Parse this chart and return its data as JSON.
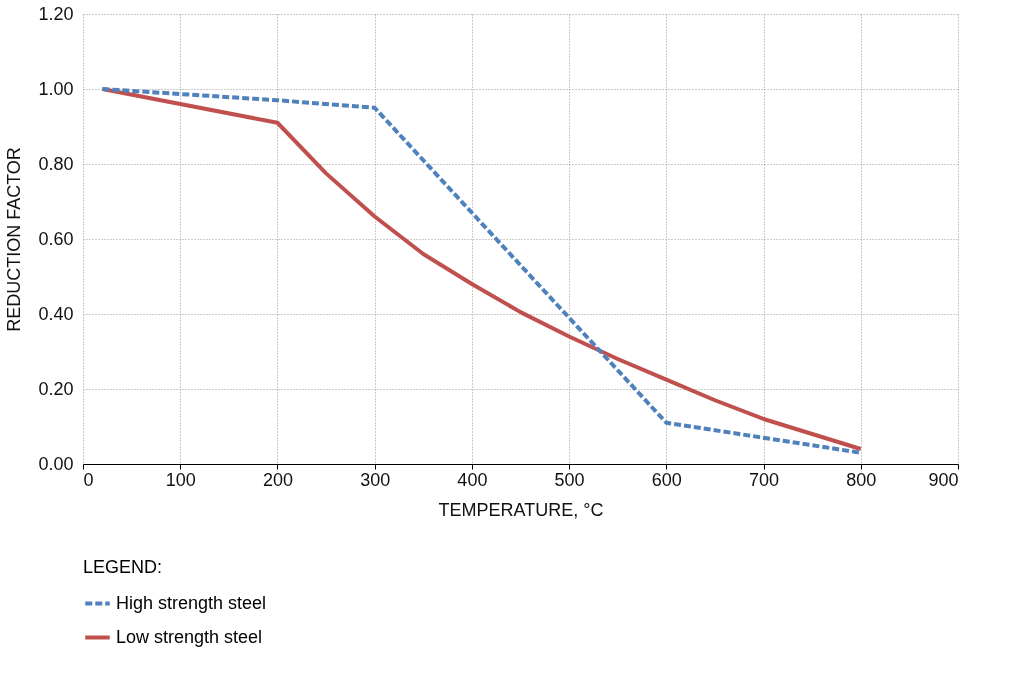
{
  "chart_data": {
    "type": "line",
    "xlabel": "TEMPERATURE, °C",
    "ylabel": "REDUCTION FACTOR",
    "legend_title": "LEGEND:",
    "legend": "bottom",
    "grid": true,
    "marker": "none",
    "xlim": [
      0,
      900
    ],
    "xticks": [
      0,
      100,
      200,
      300,
      400,
      500,
      600,
      700,
      800,
      900
    ],
    "ylim": [
      0,
      1.2
    ],
    "yticks": [
      {
        "value": 0,
        "label": "0.00"
      },
      {
        "value": 0.2,
        "label": "0.20"
      },
      {
        "value": 0.4,
        "label": "0.40"
      },
      {
        "value": 0.6,
        "label": "0.60"
      },
      {
        "value": 0.8,
        "label": "0.80"
      },
      {
        "value": 1.0,
        "label": "1.00"
      },
      {
        "value": 1.2,
        "label": "1.20"
      }
    ],
    "series": [
      {
        "name": "High strength steel",
        "color": "#4f81bd",
        "line_style": "dashed",
        "x": [
          20,
          200,
          300,
          600,
          800
        ],
        "values": [
          1.0,
          0.97,
          0.95,
          0.11,
          0.03
        ]
      },
      {
        "name": "Low strength steel",
        "color": "#c0504d",
        "line_style": "solid",
        "x": [
          20,
          200,
          250,
          300,
          350,
          400,
          450,
          500,
          550,
          600,
          650,
          700,
          800
        ],
        "values": [
          1.0,
          0.91,
          0.775,
          0.66,
          0.56,
          0.48,
          0.405,
          0.34,
          0.28,
          0.225,
          0.17,
          0.12,
          0.04
        ]
      }
    ]
  }
}
